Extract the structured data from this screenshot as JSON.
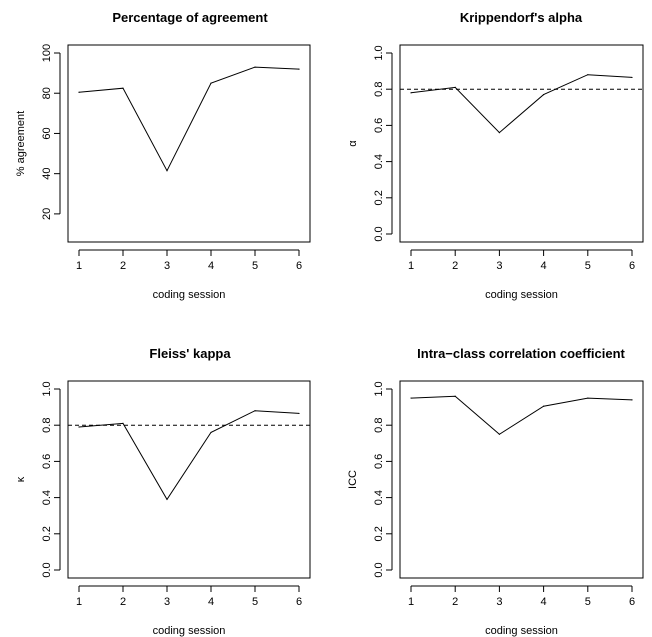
{
  "chart_data": [
    {
      "type": "line",
      "title": "Percentage of agreement",
      "xlabel": "coding session",
      "ylabel": "% agreement",
      "x": [
        1,
        2,
        3,
        4,
        5,
        6
      ],
      "values": [
        80.5,
        82.5,
        41.5,
        85,
        93,
        92
      ],
      "xlim": [
        1,
        6
      ],
      "ylim": [
        10,
        100
      ],
      "xticks": [
        "1",
        "2",
        "3",
        "4",
        "5",
        "6"
      ],
      "yticks": [
        "20",
        "40",
        "60",
        "80",
        "100"
      ],
      "reference_line": null,
      "grid": false
    },
    {
      "type": "line",
      "title": "Krippendorf's alpha",
      "xlabel": "coding session",
      "ylabel": "α",
      "x": [
        1,
        2,
        3,
        4,
        5,
        6
      ],
      "values": [
        0.78,
        0.81,
        0.56,
        0.77,
        0.88,
        0.865
      ],
      "xlim": [
        1,
        6
      ],
      "ylim": [
        0,
        1
      ],
      "xticks": [
        "1",
        "2",
        "3",
        "4",
        "5",
        "6"
      ],
      "yticks": [
        "0.0",
        "0.2",
        "0.4",
        "0.6",
        "0.8",
        "1.0"
      ],
      "reference_line": 0.8,
      "grid": false
    },
    {
      "type": "line",
      "title": "Fleiss' kappa",
      "xlabel": "coding session",
      "ylabel": "κ",
      "x": [
        1,
        2,
        3,
        4,
        5,
        6
      ],
      "values": [
        0.79,
        0.81,
        0.39,
        0.76,
        0.88,
        0.865
      ],
      "xlim": [
        1,
        6
      ],
      "ylim": [
        0,
        1
      ],
      "xticks": [
        "1",
        "2",
        "3",
        "4",
        "5",
        "6"
      ],
      "yticks": [
        "0.0",
        "0.2",
        "0.4",
        "0.6",
        "0.8",
        "1.0"
      ],
      "reference_line": 0.8,
      "grid": false
    },
    {
      "type": "line",
      "title": "Intra−class correlation coefficient",
      "xlabel": "coding session",
      "ylabel": "ICC",
      "x": [
        1,
        2,
        3,
        4,
        5,
        6
      ],
      "values": [
        0.95,
        0.96,
        0.75,
        0.905,
        0.95,
        0.94
      ],
      "xlim": [
        1,
        6
      ],
      "ylim": [
        0,
        1
      ],
      "xticks": [
        "1",
        "2",
        "3",
        "4",
        "5",
        "6"
      ],
      "yticks": [
        "0.0",
        "0.2",
        "0.4",
        "0.6",
        "0.8",
        "1.0"
      ],
      "reference_line": null,
      "grid": false
    }
  ]
}
